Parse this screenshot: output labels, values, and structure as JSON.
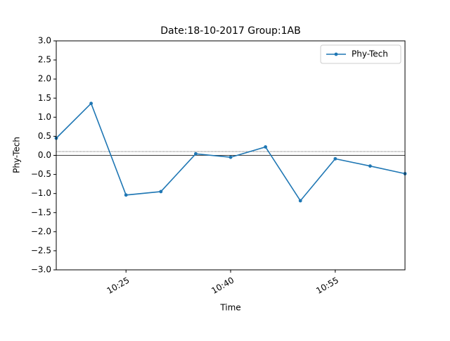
{
  "chart_data": {
    "type": "line",
    "title": "Date:18-10-2017 Group:1AB",
    "x_label": "Time",
    "y_label": "Phy-Tech",
    "x": [
      "10:15",
      "10:20",
      "10:25",
      "10:30",
      "10:35",
      "10:40",
      "10:45",
      "10:50",
      "10:55",
      "11:00",
      "11:05"
    ],
    "series": [
      {
        "name": "Phy-Tech",
        "color": "#1f77b4",
        "values": [
          0.45,
          1.36,
          -1.04,
          -0.95,
          0.04,
          -0.05,
          0.22,
          -1.19,
          -0.09,
          -0.28,
          -0.48
        ]
      }
    ],
    "xlim": [
      "10:15",
      "11:05"
    ],
    "xticks": [
      "10:25",
      "10:40",
      "10:55"
    ],
    "ylim": [
      -3.0,
      3.0
    ],
    "yticks": [
      {
        "value": -3,
        "label": "−3.0"
      },
      {
        "value": -2.5,
        "label": "−2.5"
      },
      {
        "value": -2,
        "label": "−2.0"
      },
      {
        "value": -1.5,
        "label": "−1.5"
      },
      {
        "value": -1,
        "label": "−1.0"
      },
      {
        "value": -0.5,
        "label": "−0.5"
      },
      {
        "value": 0,
        "label": "0.0"
      },
      {
        "value": 0.5,
        "label": "0.5"
      },
      {
        "value": 1,
        "label": "1.0"
      },
      {
        "value": 1.5,
        "label": "1.5"
      },
      {
        "value": 2,
        "label": "2.0"
      },
      {
        "value": 2.5,
        "label": "2.5"
      },
      {
        "value": 3,
        "label": "3.0"
      }
    ],
    "reference_lines": [
      {
        "value": 0,
        "style": "solid",
        "color": "#000000"
      },
      {
        "value": 0.1,
        "style": "dotted",
        "color": "#000000"
      }
    ],
    "legend": "upper right",
    "grid": false
  }
}
